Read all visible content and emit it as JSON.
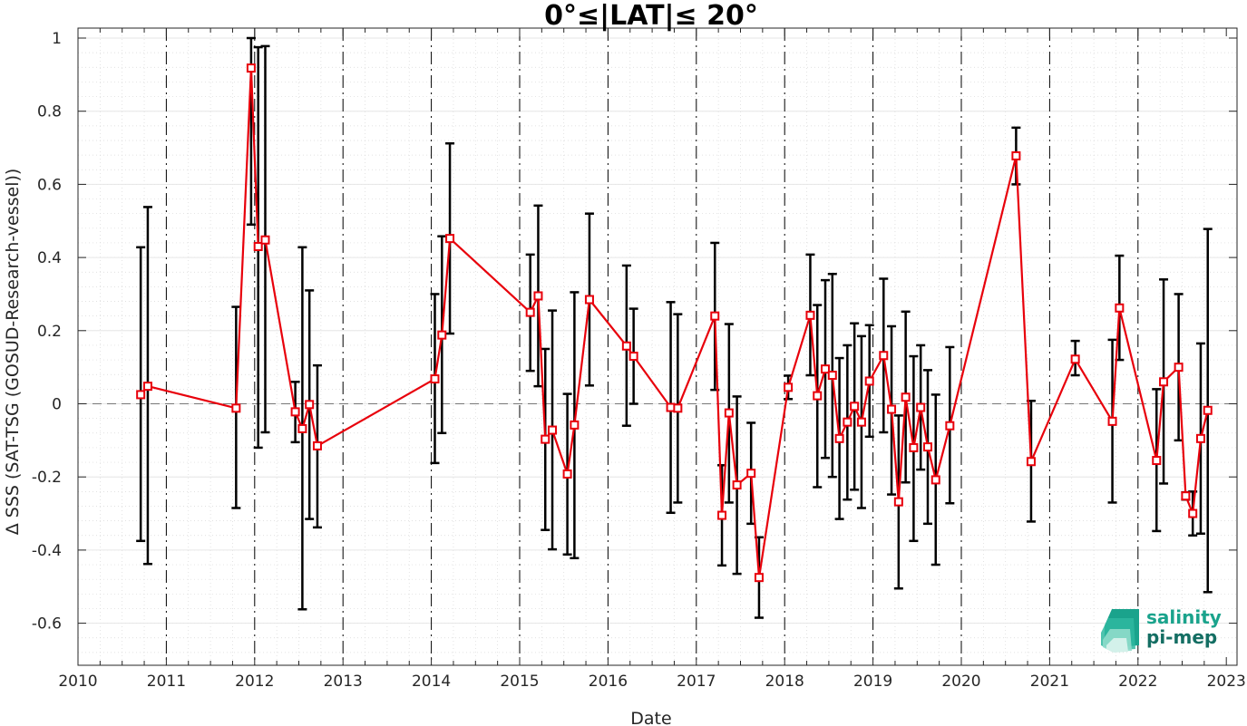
{
  "chart_data": {
    "type": "line",
    "title": "0°≤|LAT|≤ 20°",
    "xlabel": "Date",
    "ylabel": "Δ SSS (SAT-TSG (GOSUD-Research-vessel))",
    "xlim": [
      2010,
      2023
    ],
    "ylim": [
      -0.7,
      1.0
    ],
    "x_ticks": [
      "2010",
      "2011",
      "2012",
      "2013",
      "2014",
      "2015",
      "2016",
      "2017",
      "2018",
      "2019",
      "2020",
      "2021",
      "2022",
      "2023"
    ],
    "y_ticks": [
      "1",
      "0.8",
      "0.6",
      "0.4",
      "0.2",
      "0",
      "-0.2",
      "-0.4",
      "-0.6"
    ],
    "y_tick_values": [
      1.0,
      0.8,
      0.6,
      0.4,
      0.2,
      0.0,
      -0.2,
      -0.4,
      -0.6
    ],
    "grid": true,
    "zero_line": true,
    "year_separators": [
      2011,
      2012,
      2013,
      2014,
      2015,
      2016,
      2017,
      2018,
      2019,
      2020,
      2021,
      2022
    ],
    "series": [
      {
        "color": "#e8000b",
        "marker": "square",
        "points": [
          {
            "x": 2010.71,
            "y": 0.025,
            "lo": -0.375,
            "hi": 0.428
          },
          {
            "x": 2010.79,
            "y": 0.048,
            "lo": -0.438,
            "hi": 0.538
          },
          {
            "x": 2011.79,
            "y": -0.012,
            "lo": -0.285,
            "hi": 0.265
          },
          {
            "x": 2011.96,
            "y": 0.918,
            "lo": 0.49,
            "hi": 1.0
          },
          {
            "x": 2012.04,
            "y": 0.43,
            "lo": -0.12,
            "hi": 0.975
          },
          {
            "x": 2012.12,
            "y": 0.448,
            "lo": -0.078,
            "hi": 0.978
          },
          {
            "x": 2012.46,
            "y": -0.022,
            "lo": -0.105,
            "hi": 0.06
          },
          {
            "x": 2012.54,
            "y": -0.068,
            "lo": -0.562,
            "hi": 0.428
          },
          {
            "x": 2012.62,
            "y": -0.002,
            "lo": -0.315,
            "hi": 0.31
          },
          {
            "x": 2012.71,
            "y": -0.115,
            "lo": -0.338,
            "hi": 0.105
          },
          {
            "x": 2014.04,
            "y": 0.068,
            "lo": -0.162,
            "hi": 0.3
          },
          {
            "x": 2014.12,
            "y": 0.188,
            "lo": -0.08,
            "hi": 0.458
          },
          {
            "x": 2014.21,
            "y": 0.452,
            "lo": 0.192,
            "hi": 0.712
          },
          {
            "x": 2015.12,
            "y": 0.25,
            "lo": 0.09,
            "hi": 0.408
          },
          {
            "x": 2015.21,
            "y": 0.295,
            "lo": 0.048,
            "hi": 0.542
          },
          {
            "x": 2015.29,
            "y": -0.097,
            "lo": -0.345,
            "hi": 0.15
          },
          {
            "x": 2015.37,
            "y": -0.072,
            "lo": -0.398,
            "hi": 0.255
          },
          {
            "x": 2015.54,
            "y": -0.192,
            "lo": -0.412,
            "hi": 0.027
          },
          {
            "x": 2015.62,
            "y": -0.058,
            "lo": -0.422,
            "hi": 0.305
          },
          {
            "x": 2015.79,
            "y": 0.285,
            "lo": 0.05,
            "hi": 0.52
          },
          {
            "x": 2016.21,
            "y": 0.158,
            "lo": -0.06,
            "hi": 0.378
          },
          {
            "x": 2016.29,
            "y": 0.13,
            "lo": 0.0,
            "hi": 0.26
          },
          {
            "x": 2016.71,
            "y": -0.01,
            "lo": -0.298,
            "hi": 0.278
          },
          {
            "x": 2016.79,
            "y": -0.012,
            "lo": -0.27,
            "hi": 0.245
          },
          {
            "x": 2017.21,
            "y": 0.24,
            "lo": 0.038,
            "hi": 0.44
          },
          {
            "x": 2017.29,
            "y": -0.305,
            "lo": -0.442,
            "hi": -0.168
          },
          {
            "x": 2017.37,
            "y": -0.025,
            "lo": -0.27,
            "hi": 0.218
          },
          {
            "x": 2017.46,
            "y": -0.222,
            "lo": -0.465,
            "hi": 0.02
          },
          {
            "x": 2017.62,
            "y": -0.19,
            "lo": -0.328,
            "hi": -0.052
          },
          {
            "x": 2017.71,
            "y": -0.475,
            "lo": -0.585,
            "hi": -0.365
          },
          {
            "x": 2018.04,
            "y": 0.045,
            "lo": 0.013,
            "hi": 0.077
          },
          {
            "x": 2018.29,
            "y": 0.242,
            "lo": 0.078,
            "hi": 0.408
          },
          {
            "x": 2018.37,
            "y": 0.022,
            "lo": -0.228,
            "hi": 0.27
          },
          {
            "x": 2018.46,
            "y": 0.095,
            "lo": -0.148,
            "hi": 0.338
          },
          {
            "x": 2018.54,
            "y": 0.078,
            "lo": -0.2,
            "hi": 0.355
          },
          {
            "x": 2018.62,
            "y": -0.095,
            "lo": -0.315,
            "hi": 0.125
          },
          {
            "x": 2018.71,
            "y": -0.05,
            "lo": -0.262,
            "hi": 0.16
          },
          {
            "x": 2018.79,
            "y": -0.007,
            "lo": -0.235,
            "hi": 0.22
          },
          {
            "x": 2018.87,
            "y": -0.05,
            "lo": -0.285,
            "hi": 0.185
          },
          {
            "x": 2018.96,
            "y": 0.062,
            "lo": -0.09,
            "hi": 0.215
          },
          {
            "x": 2019.12,
            "y": 0.132,
            "lo": -0.078,
            "hi": 0.342
          },
          {
            "x": 2019.21,
            "y": -0.015,
            "lo": -0.248,
            "hi": 0.212
          },
          {
            "x": 2019.29,
            "y": -0.268,
            "lo": -0.505,
            "hi": -0.032
          },
          {
            "x": 2019.37,
            "y": 0.018,
            "lo": -0.215,
            "hi": 0.252
          },
          {
            "x": 2019.46,
            "y": -0.12,
            "lo": -0.375,
            "hi": 0.13
          },
          {
            "x": 2019.54,
            "y": -0.01,
            "lo": -0.18,
            "hi": 0.16
          },
          {
            "x": 2019.62,
            "y": -0.118,
            "lo": -0.328,
            "hi": 0.092
          },
          {
            "x": 2019.71,
            "y": -0.208,
            "lo": -0.44,
            "hi": 0.025
          },
          {
            "x": 2019.87,
            "y": -0.06,
            "lo": -0.272,
            "hi": 0.155
          },
          {
            "x": 2020.62,
            "y": 0.678,
            "lo": 0.6,
            "hi": 0.755
          },
          {
            "x": 2020.79,
            "y": -0.158,
            "lo": -0.322,
            "hi": 0.008
          },
          {
            "x": 2021.29,
            "y": 0.122,
            "lo": 0.078,
            "hi": 0.172
          },
          {
            "x": 2021.71,
            "y": -0.048,
            "lo": -0.27,
            "hi": 0.175
          },
          {
            "x": 2021.79,
            "y": 0.262,
            "lo": 0.12,
            "hi": 0.405
          },
          {
            "x": 2022.21,
            "y": -0.155,
            "lo": -0.348,
            "hi": 0.04
          },
          {
            "x": 2022.29,
            "y": 0.06,
            "lo": -0.218,
            "hi": 0.34
          },
          {
            "x": 2022.46,
            "y": 0.1,
            "lo": -0.1,
            "hi": 0.3
          },
          {
            "x": 2022.54,
            "y": -0.252,
            "lo": -0.262,
            "hi": -0.242
          },
          {
            "x": 2022.62,
            "y": -0.3,
            "lo": -0.36,
            "hi": -0.24
          },
          {
            "x": 2022.71,
            "y": -0.095,
            "lo": -0.355,
            "hi": 0.165
          },
          {
            "x": 2022.79,
            "y": -0.018,
            "lo": -0.515,
            "hi": 0.478
          }
        ]
      }
    ]
  },
  "logo": {
    "line1": "salinity",
    "line2": "pi-mep",
    "color_line1": "#1aa38c",
    "color_line2": "#146e63"
  }
}
